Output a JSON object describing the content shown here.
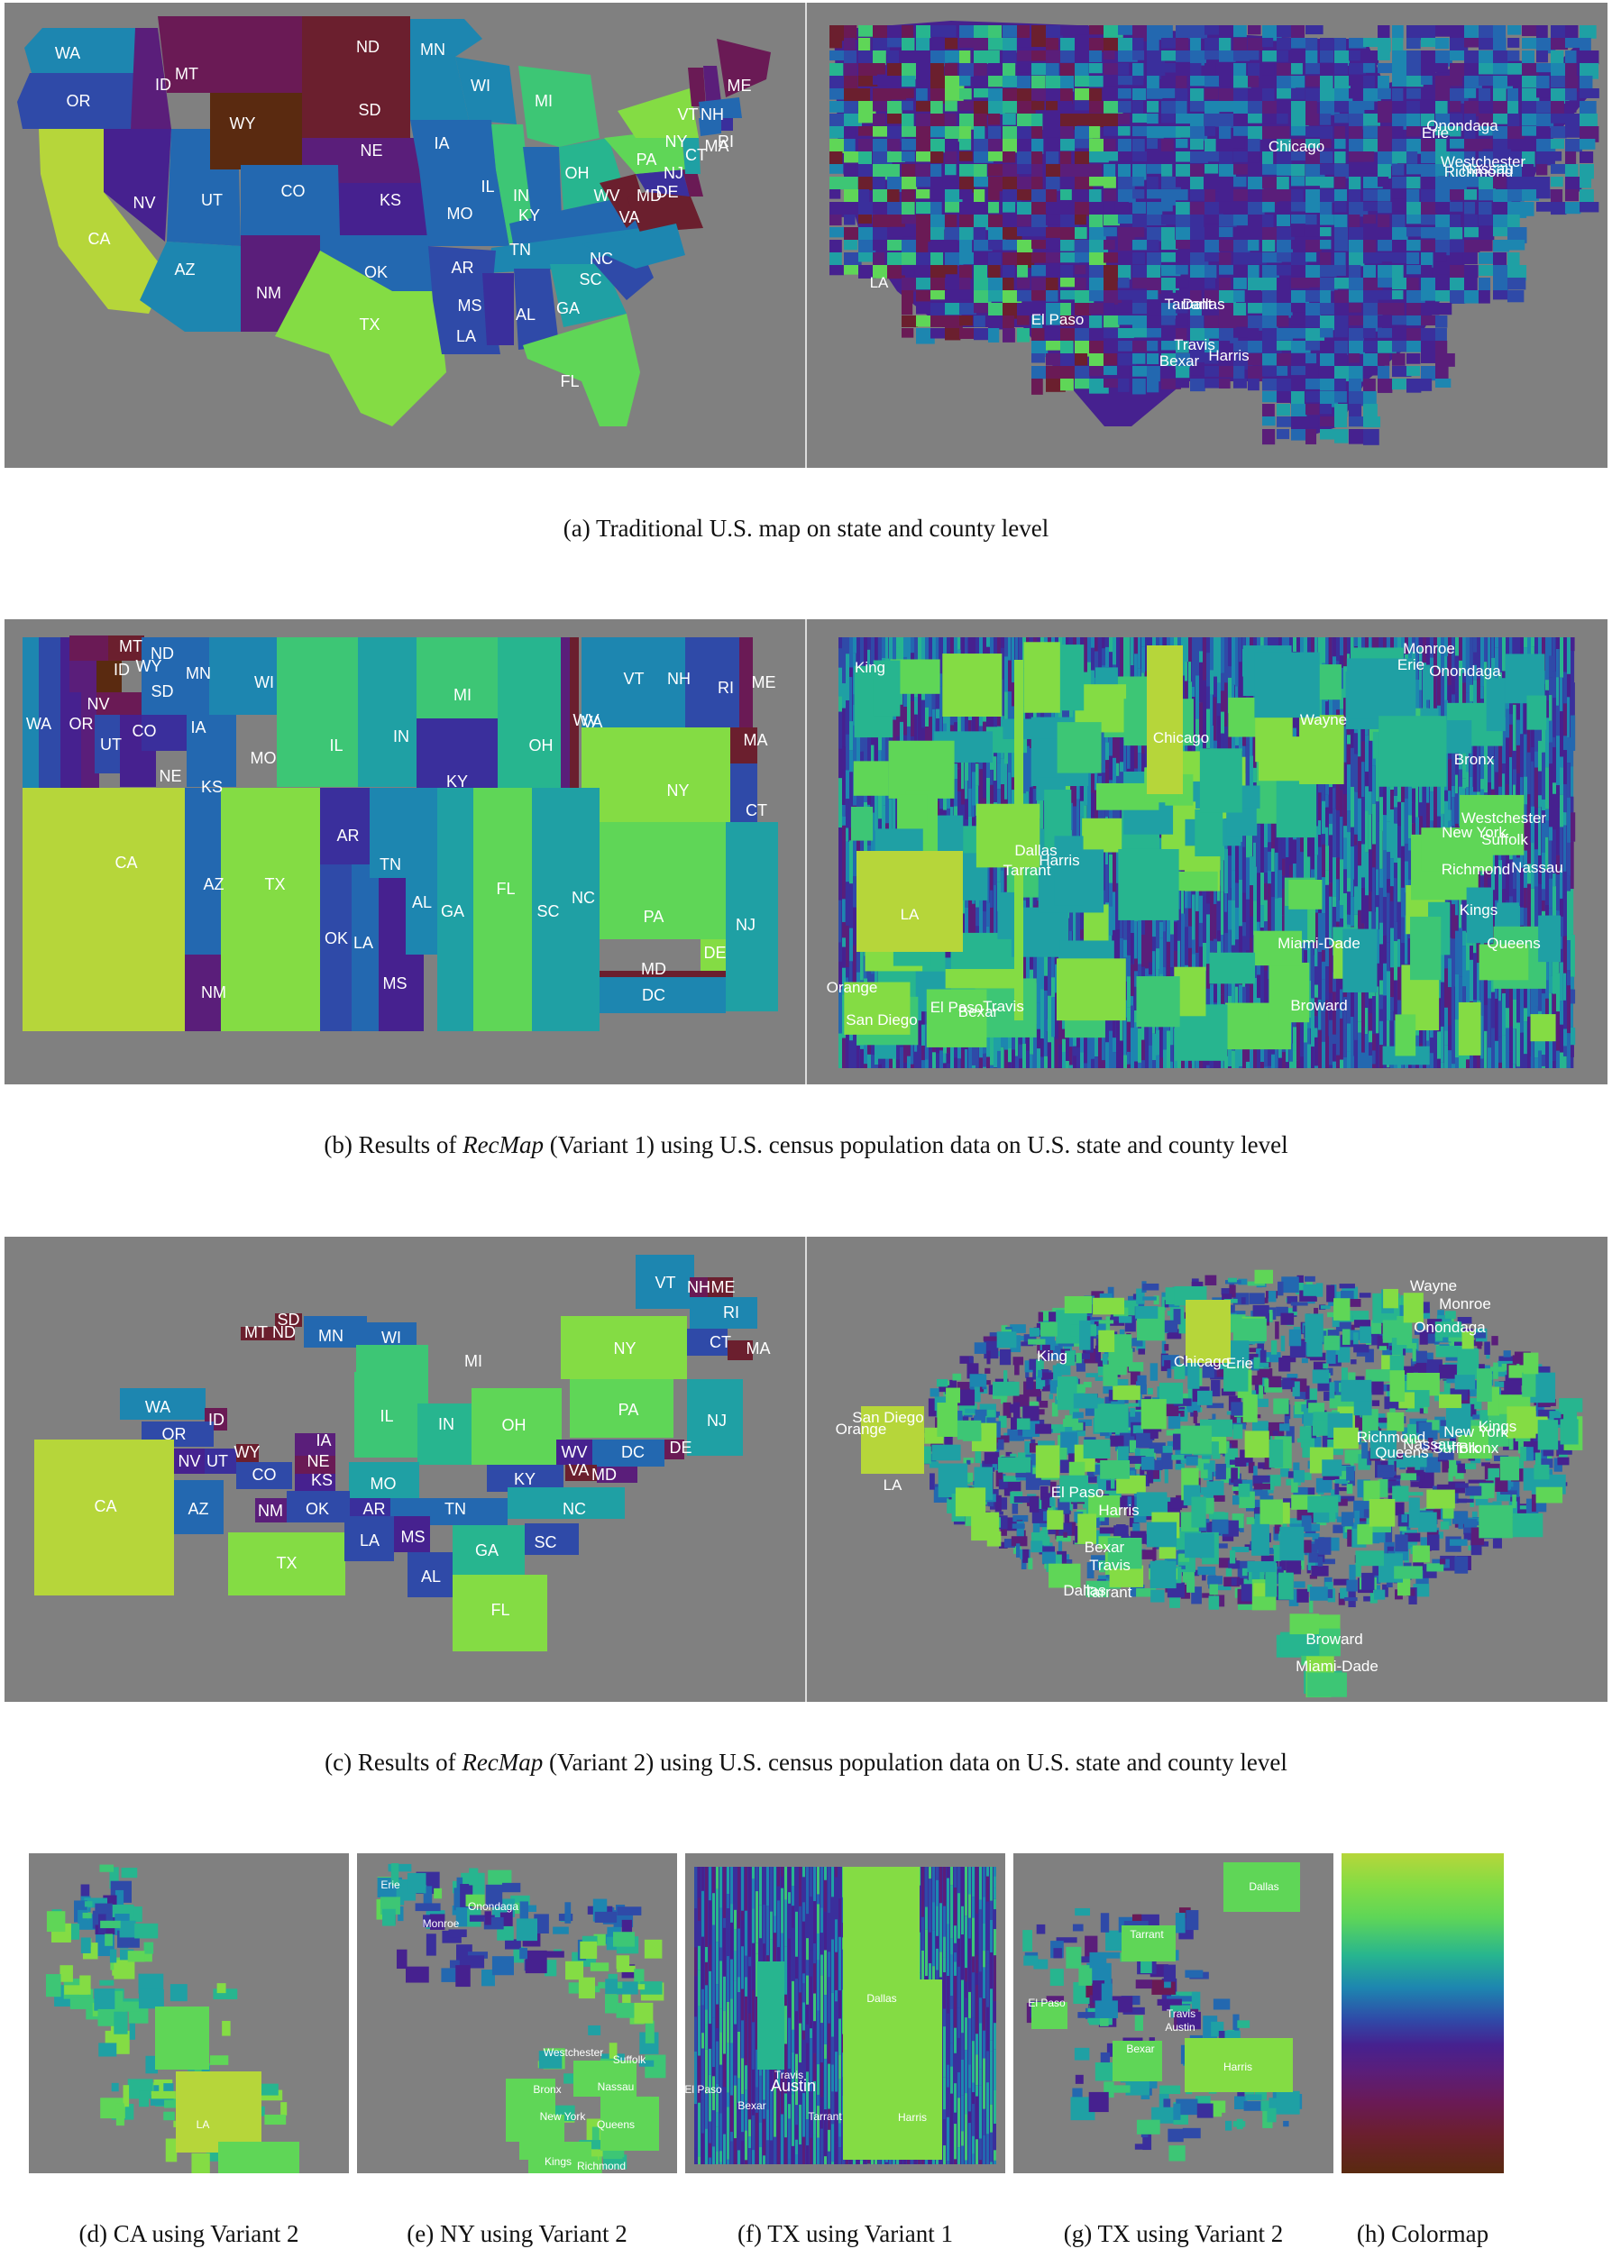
{
  "palette": [
    "#5a2a10",
    "#6b1f2e",
    "#6a1a55",
    "#5a1e7a",
    "#46218f",
    "#3a2f9c",
    "#2f4aa8",
    "#2368b0",
    "#1d86b0",
    "#1fa0a4",
    "#27b58f",
    "#3dc675",
    "#5fd657",
    "#84dc44",
    "#b6d63a"
  ],
  "caption_a": "(a) Traditional U.S. map on state and county level",
  "caption_b_pre": "(b) Results of ",
  "caption_b_em": "RecMap",
  "caption_b_post": " (Variant 1) using U.S. census population data on U.S. state and county level",
  "caption_c_pre": "(c) Results of ",
  "caption_c_em": "RecMap",
  "caption_c_post": " (Variant 2) using U.S. census population data on U.S. state and county level",
  "sub_d": "(d) CA using Variant 2",
  "sub_e": "(e) NY using Variant 2",
  "sub_f": "(f) TX using Variant 1",
  "sub_g": "(g) TX using Variant 2",
  "sub_h": "(h) Colormap",
  "panels": {
    "a_states": [
      {
        "t": "WA",
        "c": 8
      },
      {
        "t": "OR",
        "c": 6
      },
      {
        "t": "ID",
        "c": 3
      },
      {
        "t": "MT",
        "c": 2
      },
      {
        "t": "ND",
        "c": 1
      },
      {
        "t": "WY",
        "c": 0
      },
      {
        "t": "SD",
        "c": 1
      },
      {
        "t": "MN",
        "c": 8
      },
      {
        "t": "WI",
        "c": 8
      },
      {
        "t": "MI",
        "c": 11
      },
      {
        "t": "ME",
        "c": 2
      },
      {
        "t": "CA",
        "c": 14
      },
      {
        "t": "NV",
        "c": 4
      },
      {
        "t": "UT",
        "c": 7
      },
      {
        "t": "CO",
        "c": 7
      },
      {
        "t": "NE",
        "c": 3
      },
      {
        "t": "IA",
        "c": 7
      },
      {
        "t": "KS",
        "c": 4
      },
      {
        "t": "IL",
        "c": 11
      },
      {
        "t": "IN",
        "c": 7
      },
      {
        "t": "OH",
        "c": 10
      },
      {
        "t": "PA",
        "c": 12
      },
      {
        "t": "NY",
        "c": 13
      },
      {
        "t": "VT",
        "c": 2
      },
      {
        "t": "NH",
        "c": 3
      },
      {
        "t": "MA",
        "c": 7
      },
      {
        "t": "CT",
        "c": 7
      },
      {
        "t": "RI",
        "c": 5
      },
      {
        "t": "NJ",
        "c": 9
      },
      {
        "t": "DE",
        "c": 2
      },
      {
        "t": "MD",
        "c": 5
      },
      {
        "t": "VA",
        "c": 1
      },
      {
        "t": "WV",
        "c": 1
      },
      {
        "t": "KY",
        "c": 7
      },
      {
        "t": "MO",
        "c": 7
      },
      {
        "t": "AZ",
        "c": 8
      },
      {
        "t": "NM",
        "c": 3
      },
      {
        "t": "OK",
        "c": 7
      },
      {
        "t": "TX",
        "c": 13
      },
      {
        "t": "AR",
        "c": 6
      },
      {
        "t": "TN",
        "c": 8
      },
      {
        "t": "NC",
        "c": 8
      },
      {
        "t": "SC",
        "c": 6
      },
      {
        "t": "MS",
        "c": 5
      },
      {
        "t": "AL",
        "c": 6
      },
      {
        "t": "GA",
        "c": 9
      },
      {
        "t": "LA",
        "c": 6
      },
      {
        "t": "FL",
        "c": 12
      }
    ],
    "a_counties": [
      "LA",
      "Chicago",
      "Onondaga",
      "Erie",
      "Westchester",
      "Richmond",
      "Nassau",
      "El Paso",
      "Tarrant",
      "Dallas",
      "Travis",
      "Harris",
      "Bexar"
    ],
    "b_states": [
      "MT",
      "ND",
      "ID",
      "WY",
      "SD",
      "MN",
      "WI",
      "MI",
      "VT",
      "NH",
      "RI",
      "ME",
      "WA",
      "OR",
      "NV",
      "UT",
      "CO",
      "IA",
      "NE",
      "KS",
      "MO",
      "IL",
      "IN",
      "OH",
      "KY",
      "WV",
      "VA",
      "NY",
      "MA",
      "CT",
      "CA",
      "AZ",
      "TX",
      "AR",
      "TN",
      "AL",
      "GA",
      "FL",
      "SC",
      "NC",
      "PA",
      "NJ",
      "DE",
      "MD",
      "DC",
      "OK",
      "LA",
      "MS",
      "NM"
    ],
    "b_counties": [
      "King",
      "Chicago",
      "Wayne",
      "Monroe",
      "Erie",
      "Onondaga",
      "Bronx",
      "Westchester",
      "New York",
      "Suffolk",
      "Richmond",
      "Nassau",
      "Kings",
      "Queens",
      "Dallas",
      "Harris",
      "Tarrant",
      "LA",
      "Miami-Dade",
      "Orange",
      "El Paso",
      "Travis",
      "Bexar",
      "San Diego",
      "Broward"
    ],
    "c_states": [
      "VT",
      "NH",
      "ME",
      "RI",
      "SD",
      "MT",
      "ND",
      "MN",
      "WI",
      "MI",
      "NY",
      "CT",
      "MA",
      "WA",
      "ID",
      "OR",
      "IL",
      "PA",
      "NJ",
      "NV",
      "UT",
      "WY",
      "CO",
      "IA",
      "NE",
      "KS",
      "MO",
      "IN",
      "OH",
      "WV",
      "DC",
      "DE",
      "VA",
      "MD",
      "KY",
      "CA",
      "AZ",
      "NM",
      "OK",
      "AR",
      "TN",
      "NC",
      "TX",
      "LA",
      "MS",
      "GA",
      "SC",
      "AL",
      "FL"
    ],
    "c_counties": [
      "Wayne",
      "Monroe",
      "Onondaga",
      "King",
      "Chicago",
      "Erie",
      "San Diego",
      "Orange",
      "LA",
      "Richmond",
      "New York",
      "Kings",
      "Nassau",
      "Queens",
      "Suffolk",
      "Bronx",
      "El Paso",
      "Harris",
      "Bexar",
      "Travis",
      "Dallas",
      "Tarrant",
      "Broward",
      "Miami-Dade"
    ],
    "d_labels": [
      "LA"
    ],
    "e_labels": [
      "Erie",
      "Onondaga",
      "Monroe",
      "Westchester",
      "Suffolk",
      "Bronx",
      "Nassau",
      "New York",
      "Queens",
      "Kings",
      "Richmond"
    ],
    "f_labels": [
      "El Paso",
      "Bexar",
      "Travis",
      "Austin",
      "Dallas",
      "Tarrant",
      "Harris"
    ],
    "g_labels": [
      "Dallas",
      "Tarrant",
      "El Paso",
      "Travis",
      "Austin",
      "Bexar",
      "Harris"
    ]
  }
}
